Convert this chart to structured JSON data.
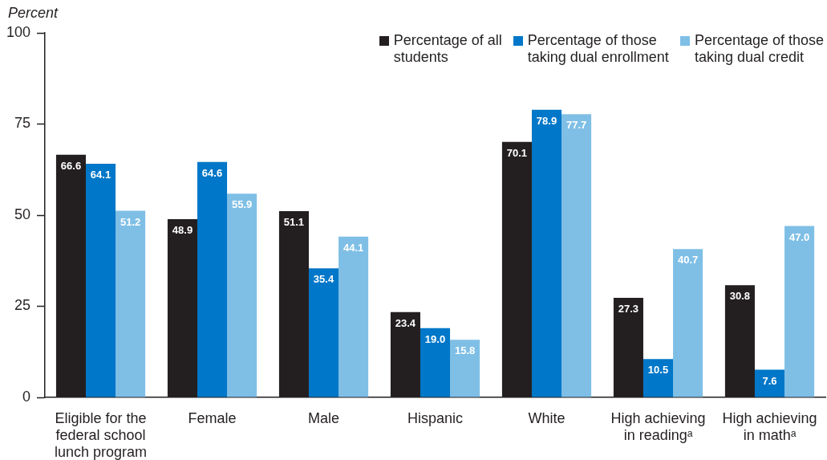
{
  "chart_data": {
    "type": "bar",
    "ylabel": "Percent",
    "categories": [
      "Eligible for the federal school lunch program",
      "Female",
      "Male",
      "Hispanic",
      "White",
      "High achieving in readingᵃ",
      "High achieving in mathᵃ"
    ],
    "series": [
      {
        "name": "Percentage of all students",
        "color": "#231f20",
        "values": [
          66.6,
          48.9,
          51.1,
          23.4,
          70.1,
          27.3,
          30.8
        ],
        "value_labels": [
          "66.6",
          "48.9",
          "51.1",
          "23.4",
          "70.1",
          "27.3",
          "30.8"
        ]
      },
      {
        "name": "Percentage of those taking dual enrollment",
        "color": "#0077c8",
        "values": [
          64.1,
          64.6,
          35.4,
          19.0,
          78.9,
          10.5,
          7.6
        ],
        "value_labels": [
          "64.1",
          "64.6",
          "35.4",
          "19.0",
          "78.9",
          "10.5",
          "7.6"
        ]
      },
      {
        "name": "Percentage of those taking dual credit",
        "color": "#7fbfe6",
        "values": [
          51.2,
          55.9,
          44.1,
          15.8,
          77.7,
          40.7,
          47.0
        ],
        "value_labels": [
          "51.2",
          "55.9",
          "44.1",
          "15.8",
          "77.7",
          "40.7",
          "47.0"
        ]
      }
    ],
    "ylim": [
      0,
      100
    ],
    "yticks": [
      0,
      25,
      50,
      75,
      100
    ],
    "grid": false,
    "legend": "top right"
  }
}
